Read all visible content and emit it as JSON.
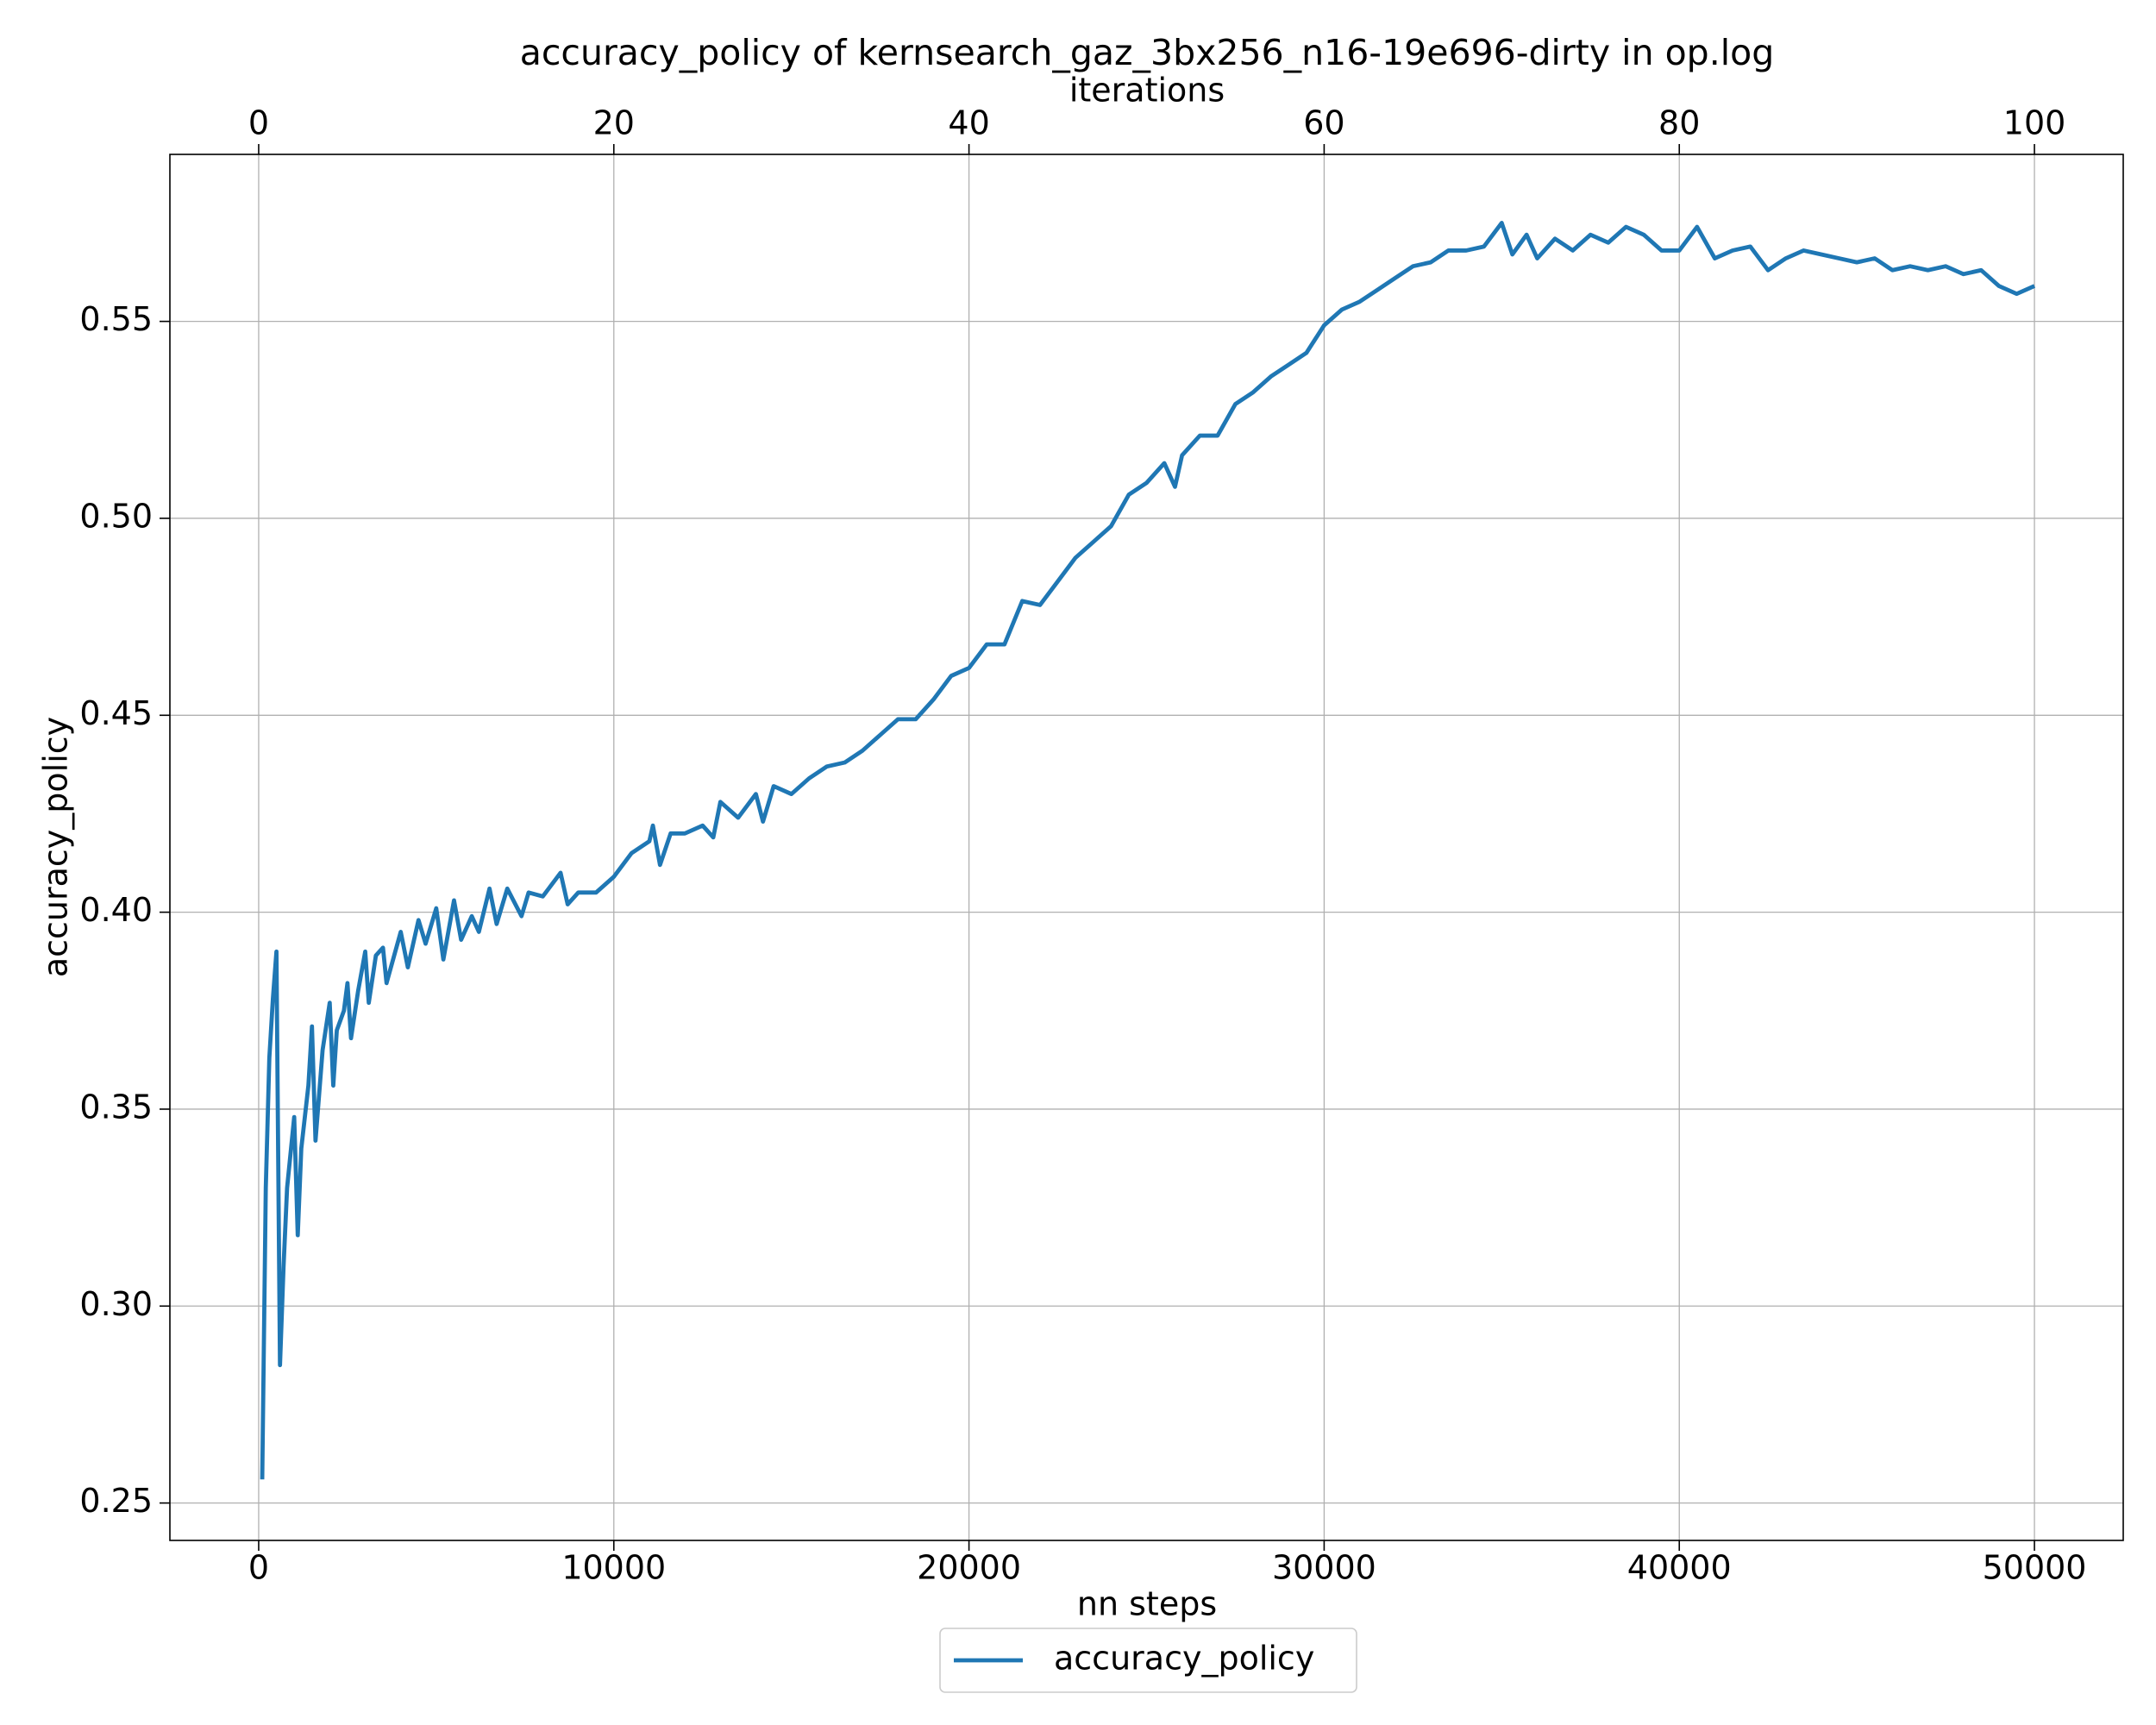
{
  "chart_data": {
    "type": "line",
    "title": "accuracy_policy of kernsearch_gaz_3bx256_n16-19e696-dirty in op.log",
    "xlabel": "nn steps",
    "ylabel": "accuracy_policy",
    "x2label": "iterations",
    "x": [
      100,
      200,
      300,
      400,
      500,
      600,
      700,
      800,
      1000,
      1100,
      1200,
      1400,
      1500,
      1600,
      1800,
      2000,
      2100,
      2200,
      2400,
      2500,
      2600,
      2800,
      3000,
      3100,
      3300,
      3500,
      3600,
      4000,
      4200,
      4500,
      4700,
      5000,
      5200,
      5500,
      5700,
      6000,
      6200,
      6500,
      6700,
      7000,
      7400,
      7600,
      8000,
      8500,
      8700,
      9000,
      9500,
      10000,
      10500,
      11000,
      11100,
      11300,
      11600,
      12000,
      12500,
      12800,
      13000,
      13500,
      14000,
      14200,
      14500,
      15000,
      15500,
      16000,
      16500,
      17000,
      17500,
      18000,
      18500,
      19000,
      19500,
      20000,
      20500,
      21000,
      21500,
      22000,
      22500,
      23000,
      23500,
      24000,
      24500,
      25000,
      25500,
      25800,
      26000,
      26500,
      27000,
      27500,
      28000,
      28500,
      29000,
      29500,
      30000,
      30500,
      31000,
      31500,
      32000,
      32500,
      33000,
      33500,
      34000,
      34500,
      35000,
      35300,
      35700,
      36000,
      36500,
      37000,
      37500,
      38000,
      38500,
      39000,
      39500,
      40000,
      40500,
      41000,
      41500,
      42000,
      42500,
      43000,
      43500,
      44000,
      44500,
      45000,
      45500,
      46000,
      46500,
      47000,
      47500,
      48000,
      48500,
      49000,
      49500,
      50000
    ],
    "series": [
      {
        "name": "accuracy_policy",
        "color": "#1f77b4",
        "values": [
          0.256,
          0.33,
          0.363,
          0.378,
          0.39,
          0.285,
          0.31,
          0.33,
          0.348,
          0.318,
          0.34,
          0.356,
          0.371,
          0.342,
          0.365,
          0.377,
          0.356,
          0.37,
          0.375,
          0.382,
          0.368,
          0.38,
          0.39,
          0.377,
          0.389,
          0.391,
          0.382,
          0.395,
          0.386,
          0.398,
          0.392,
          0.401,
          0.388,
          0.403,
          0.393,
          0.399,
          0.395,
          0.406,
          0.397,
          0.406,
          0.399,
          0.405,
          0.404,
          0.41,
          0.402,
          0.405,
          0.405,
          0.409,
          0.415,
          0.418,
          0.422,
          0.412,
          0.42,
          0.42,
          0.422,
          0.419,
          0.428,
          0.424,
          0.43,
          0.423,
          0.432,
          0.43,
          0.434,
          0.437,
          0.438,
          0.441,
          0.445,
          0.449,
          0.449,
          0.454,
          0.46,
          0.462,
          0.468,
          0.468,
          0.479,
          0.478,
          0.484,
          0.49,
          0.494,
          0.498,
          0.506,
          0.509,
          0.514,
          0.508,
          0.516,
          0.521,
          0.521,
          0.529,
          0.532,
          0.536,
          0.539,
          0.542,
          0.549,
          0.553,
          0.555,
          0.558,
          0.561,
          0.564,
          0.565,
          0.568,
          0.568,
          0.569,
          0.575,
          0.567,
          0.572,
          0.566,
          0.571,
          0.568,
          0.572,
          0.57,
          0.574,
          0.572,
          0.568,
          0.568,
          0.574,
          0.566,
          0.568,
          0.569,
          0.563,
          0.566,
          0.568,
          0.567,
          0.566,
          0.565,
          0.566,
          0.563,
          0.564,
          0.563,
          0.564,
          0.562,
          0.563,
          0.559,
          0.557,
          0.559
        ]
      }
    ],
    "xlim": [
      -2500,
      52500
    ],
    "xticks": [
      0,
      10000,
      20000,
      30000,
      40000,
      50000
    ],
    "x2lim": [
      -5,
      105
    ],
    "x2ticks": [
      0,
      20,
      40,
      60,
      80,
      100
    ],
    "ylim": [
      0.2405,
      0.5924
    ],
    "yticks": [
      0.25,
      {
        "value": 0.3,
        "label": "0.30"
      },
      0.35,
      {
        "value": 0.4,
        "label": "0.40"
      },
      0.45,
      {
        "value": 0.5,
        "label": "0.50"
      },
      0.55
    ],
    "grid": true,
    "legend_loc": "below"
  }
}
